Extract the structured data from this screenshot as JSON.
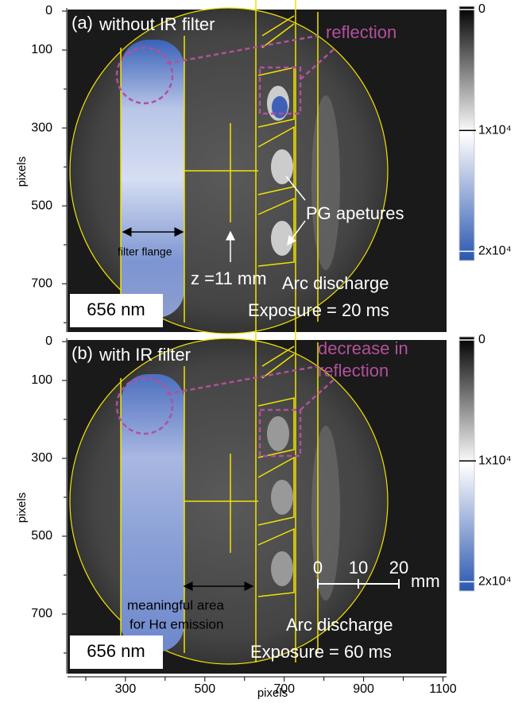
{
  "panels": [
    {
      "label": "(a)",
      "title": "without IR filter",
      "annotation": [
        "reflection"
      ],
      "wavelength": "656 nm",
      "condition": "Arc discharge",
      "exposure": "Exposure = 20 ms",
      "y_axis_label": "pixels",
      "ylim": [
        0,
        824
      ],
      "yticks": [
        0,
        100,
        300,
        500,
        700
      ],
      "yminor": [
        200,
        400,
        600,
        800
      ],
      "notes": [
        "filter flange",
        "z =11 mm",
        "PG apetures"
      ]
    },
    {
      "label": "(b)",
      "title": "with IR filter",
      "annotation": [
        "decrease in",
        "reflection"
      ],
      "wavelength": "656 nm",
      "condition": "Arc discharge",
      "exposure": "Exposure = 60 ms",
      "y_axis_label": "pixels",
      "ylim": [
        0,
        853
      ],
      "yticks": [
        0,
        100,
        300,
        500,
        700
      ],
      "yminor": [
        200,
        400,
        600,
        800
      ],
      "notes": [
        "meaningful area",
        "for Hα emission"
      ]
    }
  ],
  "colorbar": {
    "clim": [
      0,
      20500
    ],
    "ticks": [
      {
        "value": 0,
        "label": "0"
      },
      {
        "value": 10000,
        "label": "1x10⁴"
      },
      {
        "value": 20000,
        "label": "2x10⁴"
      }
    ]
  },
  "x_axis": {
    "label": "pixels",
    "xlim": [
      154,
      1109
    ],
    "xticks": [
      300,
      500,
      700,
      900,
      1100
    ],
    "xminor": [
      200,
      400,
      600,
      800,
      1000
    ]
  },
  "scale_bar": {
    "ticks": [
      0,
      10,
      20
    ],
    "unit": "mm"
  }
}
